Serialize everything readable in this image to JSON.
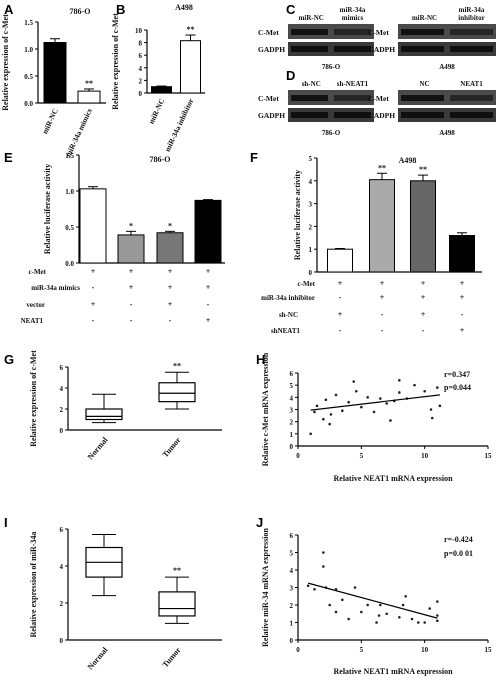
{
  "panel_letters": {
    "A": "A",
    "B": "B",
    "C": "C",
    "D": "D",
    "E": "E",
    "F": "F",
    "G": "G",
    "H": "H",
    "I": "I",
    "J": "J"
  },
  "blots": {
    "C_left": {
      "col1": "miR-NC",
      "col2": "miR-34a\nmimics",
      "row1": "C-Met",
      "row2": "GADPH",
      "caption": "786-O"
    },
    "C_right": {
      "col1": "miR-NC",
      "col2": "miR-34a\ninhibitor",
      "row1": "C-Met",
      "row2": "GADPH",
      "caption": "A498"
    },
    "D_left": {
      "col1": "sh-NC",
      "col2": "sh-NEAT1",
      "row1": "C-Met",
      "row2": "GADPH",
      "caption": "786-O"
    },
    "D_right": {
      "col1": "NC",
      "col2": "NEAT1",
      "row1": "C-Met",
      "row2": "GADPH",
      "caption": "A498"
    }
  },
  "chart_data": [
    {
      "panel": "A",
      "type": "bar",
      "title": "786-O",
      "ylabel": "Relative expression of  c-Met",
      "categories": [
        "miR-NC",
        "miR-34a mimics"
      ],
      "values": [
        1.12,
        0.22
      ],
      "errors": [
        0.07,
        0.04
      ],
      "fills": [
        "#000000",
        "#ffffff"
      ],
      "ylim": [
        0,
        1.5
      ],
      "yticks": [
        "0.0",
        "0.5",
        "1.0",
        "1.5"
      ],
      "ytick_values": [
        0,
        0.5,
        1.0,
        1.5
      ],
      "annotations": [
        "",
        "**"
      ]
    },
    {
      "panel": "B",
      "type": "bar",
      "title": "A498",
      "ylabel": "Relative expression of  c-Met",
      "categories": [
        "miR-NC",
        "miR-34a inhibitor"
      ],
      "values": [
        1.0,
        8.3
      ],
      "errors": [
        0.1,
        0.9
      ],
      "fills": [
        "#000000",
        "#ffffff"
      ],
      "ylim": [
        0,
        10
      ],
      "yticks": [
        "0",
        "2",
        "4",
        "6",
        "8",
        "10"
      ],
      "ytick_values": [
        0,
        2,
        4,
        6,
        8,
        10
      ],
      "annotations": [
        "",
        "**"
      ]
    },
    {
      "panel": "E",
      "type": "bar",
      "title": "786-O",
      "ylabel": "Relative luciferase activity",
      "categories": [
        "1",
        "2",
        "3",
        "4"
      ],
      "values": [
        1.03,
        0.39,
        0.42,
        0.87
      ],
      "errors": [
        0.03,
        0.05,
        0.02,
        0.01
      ],
      "fills": [
        "#ffffff",
        "#999999",
        "#777777",
        "#000000"
      ],
      "ylim": [
        0,
        1.5
      ],
      "yticks": [
        "0.0",
        "0.5",
        "1.0",
        "1.5"
      ],
      "ytick_values": [
        0,
        0.5,
        1.0,
        1.5
      ],
      "annotations": [
        "",
        "*",
        "*",
        ""
      ],
      "condition_rows": [
        {
          "label": "c-Met",
          "signs": [
            "+",
            "+",
            "+",
            "+"
          ]
        },
        {
          "label": "miR-34a mimics",
          "signs": [
            "-",
            "+",
            "+",
            "+"
          ]
        },
        {
          "label": "vector",
          "signs": [
            "+",
            "-",
            "+",
            "-"
          ]
        },
        {
          "label": "NEAT1",
          "signs": [
            "-",
            "-",
            "-",
            "+"
          ]
        }
      ]
    },
    {
      "panel": "F",
      "type": "bar",
      "title": "A498",
      "ylabel": "Relative luciferase activity",
      "categories": [
        "1",
        "2",
        "3",
        "4"
      ],
      "values": [
        1.0,
        4.05,
        4.0,
        1.6
      ],
      "errors": [
        0.03,
        0.28,
        0.25,
        0.12
      ],
      "fills": [
        "#ffffff",
        "#aaaaaa",
        "#666666",
        "#000000"
      ],
      "ylim": [
        0,
        5
      ],
      "yticks": [
        "0",
        "1",
        "2",
        "3",
        "4",
        "5"
      ],
      "ytick_values": [
        0,
        1,
        2,
        3,
        4,
        5
      ],
      "annotations": [
        "",
        "**",
        "**",
        ""
      ],
      "condition_rows": [
        {
          "label": "c-Met",
          "signs": [
            "+",
            "+",
            "+",
            "+"
          ]
        },
        {
          "label": "miR-34a inhibitor",
          "signs": [
            "-",
            "+",
            "+",
            "+"
          ]
        },
        {
          "label": "sh-NC",
          "signs": [
            "+",
            "-",
            "+",
            "-"
          ]
        },
        {
          "label": "shNEAT1",
          "signs": [
            "-",
            "-",
            "-",
            "+"
          ]
        }
      ]
    },
    {
      "panel": "G",
      "type": "box",
      "ylabel": "Relative expression of  c-Met",
      "categories": [
        "Normal",
        "Tumor"
      ],
      "boxes": [
        {
          "min": 0.7,
          "q1": 1.0,
          "median": 1.3,
          "q3": 2.0,
          "max": 3.4
        },
        {
          "min": 2.0,
          "q1": 2.7,
          "median": 3.5,
          "q3": 4.5,
          "max": 5.5
        }
      ],
      "ylim": [
        0,
        6
      ],
      "yticks": [
        "0",
        "2",
        "4",
        "6"
      ],
      "ytick_values": [
        0,
        2,
        4,
        6
      ],
      "annotations": [
        "",
        "**"
      ]
    },
    {
      "panel": "H",
      "type": "scatter",
      "xlabel": "Relative NEAT1 mRNA expression",
      "ylabel": "Relative c-Met mRNA expression",
      "xlim": [
        0,
        15
      ],
      "ylim": [
        0,
        6
      ],
      "xticks": [
        "0",
        "5",
        "10",
        "15"
      ],
      "xtick_values": [
        0,
        5,
        10,
        15
      ],
      "yticks": [
        "0",
        "1",
        "2",
        "3",
        "4",
        "5",
        "6"
      ],
      "ytick_values": [
        0,
        1,
        2,
        3,
        4,
        5,
        6
      ],
      "points": [
        [
          1.0,
          1.0
        ],
        [
          1.3,
          2.8
        ],
        [
          1.5,
          3.3
        ],
        [
          2.0,
          2.2
        ],
        [
          2.2,
          3.8
        ],
        [
          2.5,
          1.8
        ],
        [
          2.6,
          2.6
        ],
        [
          3.0,
          4.2
        ],
        [
          3.5,
          2.9
        ],
        [
          4.0,
          3.6
        ],
        [
          4.4,
          5.3
        ],
        [
          4.6,
          4.5
        ],
        [
          5.0,
          3.2
        ],
        [
          5.5,
          4.0
        ],
        [
          6.0,
          2.8
        ],
        [
          6.5,
          3.9
        ],
        [
          7.0,
          3.5
        ],
        [
          7.3,
          2.1
        ],
        [
          7.6,
          3.7
        ],
        [
          8.0,
          4.4
        ],
        [
          8.0,
          5.4
        ],
        [
          8.6,
          3.9
        ],
        [
          9.2,
          5.0
        ],
        [
          10.0,
          4.5
        ],
        [
          10.5,
          3.0
        ],
        [
          10.6,
          2.3
        ],
        [
          11.0,
          4.8
        ],
        [
          11.2,
          3.3
        ]
      ],
      "fit_line": [
        [
          1.0,
          2.95
        ],
        [
          11.2,
          4.2
        ]
      ],
      "stat_lines": [
        "r=0.347",
        "p=0.044"
      ]
    },
    {
      "panel": "I",
      "type": "box",
      "ylabel": "Relative expression of  miR-34a",
      "categories": [
        "Normal",
        "Tumor"
      ],
      "boxes": [
        {
          "min": 2.4,
          "q1": 3.4,
          "median": 4.2,
          "q3": 5.0,
          "max": 5.7
        },
        {
          "min": 0.9,
          "q1": 1.3,
          "median": 1.7,
          "q3": 2.6,
          "max": 3.4
        }
      ],
      "ylim": [
        0,
        6
      ],
      "yticks": [
        "0",
        "2",
        "4",
        "6"
      ],
      "ytick_values": [
        0,
        2,
        4,
        6
      ],
      "annotations": [
        "",
        "**"
      ]
    },
    {
      "panel": "J",
      "type": "scatter",
      "xlabel": "Relative NEAT1 mRNA expression",
      "ylabel": "Relative miR-34 mRNA expression",
      "xlim": [
        0,
        15
      ],
      "ylim": [
        0,
        6
      ],
      "xticks": [
        "0",
        "5",
        "10",
        "15"
      ],
      "xtick_values": [
        0,
        5,
        10,
        15
      ],
      "yticks": [
        "0",
        "1",
        "2",
        "3",
        "4",
        "5",
        "6"
      ],
      "ytick_values": [
        0,
        1,
        2,
        3,
        4,
        5,
        6
      ],
      "points": [
        [
          0.8,
          3.1
        ],
        [
          1.3,
          2.9
        ],
        [
          2.0,
          5.0
        ],
        [
          2.0,
          4.2
        ],
        [
          2.2,
          3.0
        ],
        [
          2.5,
          2.0
        ],
        [
          3.0,
          1.6
        ],
        [
          3.0,
          2.9
        ],
        [
          3.5,
          2.3
        ],
        [
          4.0,
          1.2
        ],
        [
          4.5,
          3.0
        ],
        [
          5.0,
          1.6
        ],
        [
          5.5,
          2.0
        ],
        [
          6.2,
          1.0
        ],
        [
          6.4,
          1.4
        ],
        [
          6.5,
          2.0
        ],
        [
          7.0,
          1.5
        ],
        [
          8.0,
          1.3
        ],
        [
          8.3,
          2.0
        ],
        [
          8.5,
          2.5
        ],
        [
          9.0,
          1.2
        ],
        [
          9.5,
          1.0
        ],
        [
          10.0,
          1.0
        ],
        [
          10.4,
          1.8
        ],
        [
          11.0,
          1.4
        ],
        [
          11.0,
          1.1
        ],
        [
          11.0,
          2.2
        ]
      ],
      "fit_line": [
        [
          0.8,
          3.25
        ],
        [
          11.0,
          1.25
        ]
      ],
      "stat_lines": [
        "r=-0.424",
        "p=0.0 01"
      ]
    }
  ]
}
